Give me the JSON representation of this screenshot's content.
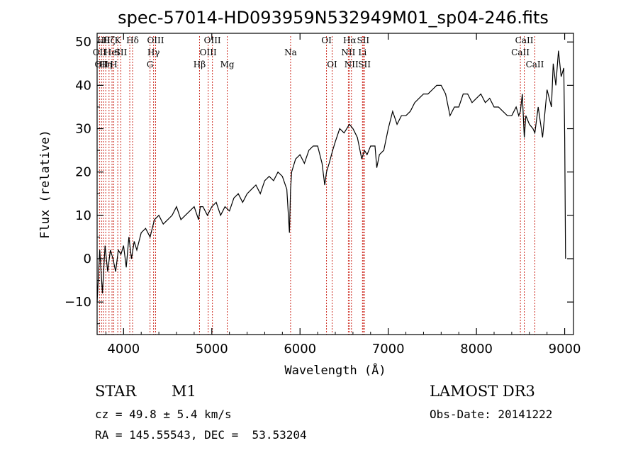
{
  "chart_data": {
    "type": "line",
    "title": "spec-57014-HD093959N532949M01_sp04-246.fits",
    "xlabel": "Wavelength (Å)",
    "ylabel": "Flux (relative)",
    "xlim": [
      3700,
      9100
    ],
    "ylim": [
      -17.5,
      52
    ],
    "xticks": [
      4000,
      5000,
      6000,
      7000,
      8000,
      9000
    ],
    "yticks": [
      -10,
      0,
      10,
      20,
      30,
      40,
      50
    ],
    "series": [
      {
        "name": "flux",
        "x": [
          3700,
          3730,
          3760,
          3790,
          3820,
          3850,
          3880,
          3910,
          3940,
          3970,
          4000,
          4030,
          4060,
          4090,
          4120,
          4150,
          4200,
          4250,
          4300,
          4350,
          4400,
          4450,
          4500,
          4550,
          4600,
          4650,
          4700,
          4750,
          4800,
          4850,
          4870,
          4900,
          4950,
          5000,
          5050,
          5100,
          5150,
          5200,
          5250,
          5300,
          5350,
          5400,
          5450,
          5500,
          5550,
          5600,
          5650,
          5700,
          5750,
          5800,
          5850,
          5880,
          5893,
          5905,
          5950,
          6000,
          6050,
          6100,
          6150,
          6200,
          6250,
          6280,
          6300,
          6330,
          6370,
          6400,
          6450,
          6500,
          6560,
          6600,
          6650,
          6700,
          6730,
          6760,
          6800,
          6850,
          6870,
          6900,
          6950,
          7000,
          7050,
          7100,
          7150,
          7200,
          7250,
          7300,
          7350,
          7400,
          7450,
          7500,
          7550,
          7600,
          7650,
          7700,
          7750,
          7800,
          7850,
          7900,
          7950,
          8000,
          8050,
          8100,
          8150,
          8200,
          8250,
          8300,
          8350,
          8400,
          8450,
          8480,
          8498,
          8520,
          8542,
          8560,
          8600,
          8640,
          8662,
          8700,
          8750,
          8800,
          8850,
          8870,
          8900,
          8930,
          8960,
          8990,
          9000,
          9010
        ],
        "values": [
          -10,
          2,
          -8,
          3,
          -3,
          2,
          0,
          -3,
          2,
          1,
          3,
          -2,
          5,
          0,
          4,
          2,
          6,
          7,
          5,
          9,
          10,
          8,
          9,
          10,
          12,
          9,
          10,
          11,
          12,
          9,
          12,
          12,
          10,
          12,
          13,
          10,
          12,
          11,
          14,
          15,
          13,
          15,
          16,
          17,
          15,
          18,
          19,
          18,
          20,
          19,
          16,
          6,
          16,
          20,
          23,
          24,
          22,
          25,
          26,
          26,
          22,
          17,
          20,
          22,
          25,
          27,
          30,
          29,
          31,
          30,
          28,
          23,
          25,
          24,
          26,
          26,
          21,
          24,
          25,
          30,
          34,
          31,
          33,
          33,
          34,
          36,
          37,
          38,
          38,
          39,
          40,
          40,
          38,
          33,
          35,
          35,
          38,
          38,
          36,
          37,
          38,
          36,
          37,
          35,
          35,
          34,
          33,
          33,
          35,
          33,
          34,
          38,
          28,
          33,
          31,
          30,
          29,
          35,
          28,
          39,
          35,
          45,
          40,
          48,
          42,
          44,
          28,
          0
        ],
        "color": "#000000"
      }
    ],
    "lines": [
      {
        "wave": 3727,
        "row": 1,
        "label": "OII"
      },
      {
        "wave": 3750,
        "row": 2,
        "label": "OII"
      },
      {
        "wave": 3770,
        "row": 0,
        "label": "Hθ"
      },
      {
        "wave": 3798,
        "row": 2,
        "label": "Hη"
      },
      {
        "wave": 3835,
        "row": 0,
        "label": "Hζ"
      },
      {
        "wave": 3869,
        "row": 1,
        "label": "HeI"
      },
      {
        "wave": 3889,
        "row": 2,
        "label": "H"
      },
      {
        "wave": 3934,
        "row": 0,
        "label": "K"
      },
      {
        "wave": 3969,
        "row": 1,
        "label": "SII"
      },
      {
        "wave": 4102,
        "row": 0,
        "label": "Hδ"
      },
      {
        "wave": 4070,
        "row": 1,
        "label": ""
      },
      {
        "wave": 4300,
        "row": 2,
        "label": "G"
      },
      {
        "wave": 4340,
        "row": 1,
        "label": "Hγ"
      },
      {
        "wave": 4363,
        "row": 0,
        "label": "OIII"
      },
      {
        "wave": 4861,
        "row": 2,
        "label": "Hβ"
      },
      {
        "wave": 4959,
        "row": 1,
        "label": "OIII"
      },
      {
        "wave": 5007,
        "row": 0,
        "label": "OIII"
      },
      {
        "wave": 5175,
        "row": 2,
        "label": "Mg"
      },
      {
        "wave": 5893,
        "row": 1,
        "label": "Na"
      },
      {
        "wave": 6300,
        "row": 0,
        "label": "OI"
      },
      {
        "wave": 6364,
        "row": 2,
        "label": "OI"
      },
      {
        "wave": 6548,
        "row": 1,
        "label": "NII"
      },
      {
        "wave": 6563,
        "row": 0,
        "label": "Hα"
      },
      {
        "wave": 6583,
        "row": 2,
        "label": "NII"
      },
      {
        "wave": 6708,
        "row": 1,
        "label": "Li"
      },
      {
        "wave": 6716,
        "row": 0,
        "label": "SII"
      },
      {
        "wave": 6731,
        "row": 2,
        "label": "SII"
      },
      {
        "wave": 8498,
        "row": 1,
        "label": "CaII"
      },
      {
        "wave": 8542,
        "row": 0,
        "label": "CaII"
      },
      {
        "wave": 8662,
        "row": 2,
        "label": "CaII"
      }
    ],
    "grid": false
  },
  "info": {
    "class": "STAR",
    "subclass": "M1",
    "survey": "LAMOST DR3",
    "cz": "cz = 49.8 ± 5.4 km/s",
    "obsdate": "Obs-Date: 20141222",
    "radec": "RA = 145.55543, DEC =  53.53204"
  }
}
